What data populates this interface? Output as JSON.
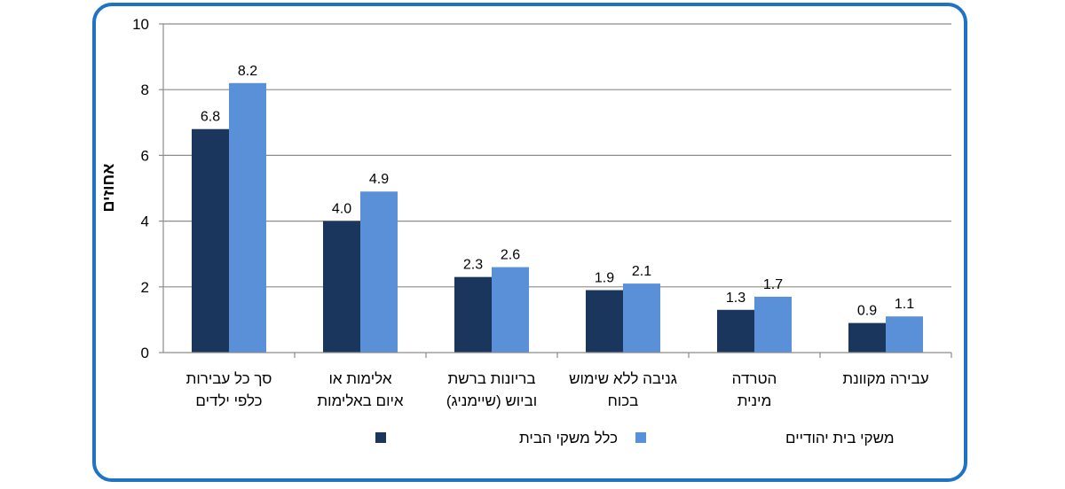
{
  "chart_data": {
    "type": "bar",
    "categories": [
      [
        "סך כל עבירות",
        "כלפי ילדים"
      ],
      [
        "אלימות או",
        "איום באלימות"
      ],
      [
        "בריונות ברשת",
        "וביוש (שיימניג)"
      ],
      [
        "גניבה ללא שימוש",
        "בכוח"
      ],
      [
        "הטרדה",
        "מינית"
      ],
      [
        "עבירה מקוונת"
      ]
    ],
    "series": [
      {
        "name": "כלל משקי הבית",
        "color": "#1b365d",
        "values": [
          6.8,
          4.0,
          2.3,
          1.9,
          1.3,
          0.9
        ],
        "labels": [
          "6.8",
          "4.0",
          "2.3",
          "1.9",
          "1.3",
          "0.9"
        ]
      },
      {
        "name": "משקי בית יהודיים",
        "color": "#5a90d8",
        "values": [
          8.2,
          4.9,
          2.6,
          2.1,
          1.7,
          1.1
        ],
        "labels": [
          "8.2",
          "4.9",
          "2.6",
          "2.1",
          "1.7",
          "1.1"
        ]
      }
    ],
    "ylabel": "אחוזים",
    "ylim": [
      0,
      10
    ],
    "yticks": [
      "0",
      "2",
      "4",
      "6",
      "8",
      "10"
    ],
    "legend_position": "bottom",
    "grid": true
  },
  "colors": {
    "frame": "#1f73c4",
    "grid": "#8c8c8c"
  }
}
